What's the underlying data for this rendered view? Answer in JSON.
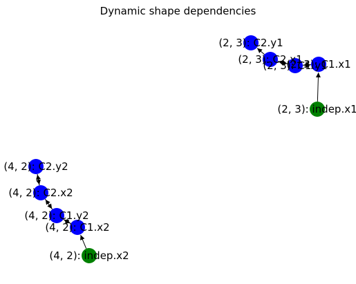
{
  "title": "Dynamic shape dependencies",
  "colors": {
    "dependent_node": "#0000ff",
    "independent_node": "#008000",
    "edge": "#000000",
    "background": "#ffffff",
    "text": "#000000"
  },
  "graph": {
    "nodes": [
      {
        "id": "n2_c2y1",
        "label": "(2, 3): C2.y1",
        "kind": "dependent"
      },
      {
        "id": "n2_c2x1",
        "label": "(2, 3): C2.x1",
        "kind": "dependent"
      },
      {
        "id": "n2_c1y1",
        "label": "(2, 3): C1.y1",
        "kind": "dependent"
      },
      {
        "id": "n2_c1x1",
        "label": "(2, 3): C1.x1",
        "kind": "dependent"
      },
      {
        "id": "n2_indep",
        "label": "(2, 3): indep.x1",
        "kind": "independent"
      },
      {
        "id": "n4_c2y2",
        "label": "(4, 2): C2.y2",
        "kind": "dependent"
      },
      {
        "id": "n4_c2x2",
        "label": "(4, 2): C2.x2",
        "kind": "dependent"
      },
      {
        "id": "n4_c1y2",
        "label": "(4, 2): C1.y2",
        "kind": "dependent"
      },
      {
        "id": "n4_c1x2",
        "label": "(4, 2): C1.x2",
        "kind": "dependent"
      },
      {
        "id": "n4_indep",
        "label": "(4, 2): indep.x2",
        "kind": "independent"
      }
    ],
    "edges": [
      {
        "from": "n2_indep",
        "to": "n2_c1x1"
      },
      {
        "from": "n2_c1x1",
        "to": "n2_c1y1"
      },
      {
        "from": "n2_c1y1",
        "to": "n2_c1x1"
      },
      {
        "from": "n2_c1y1",
        "to": "n2_c2x1"
      },
      {
        "from": "n2_c2x1",
        "to": "n2_c1y1"
      },
      {
        "from": "n2_c2x1",
        "to": "n2_c2y1"
      },
      {
        "from": "n4_indep",
        "to": "n4_c1x2"
      },
      {
        "from": "n4_c1x2",
        "to": "n4_c1y2"
      },
      {
        "from": "n4_c1y2",
        "to": "n4_c1x2"
      },
      {
        "from": "n4_c1y2",
        "to": "n4_c2x2"
      },
      {
        "from": "n4_c2x2",
        "to": "n4_c1y2"
      },
      {
        "from": "n4_c2x2",
        "to": "n4_c2y2"
      },
      {
        "from": "n4_c2y2",
        "to": "n4_c2x2"
      }
    ]
  }
}
